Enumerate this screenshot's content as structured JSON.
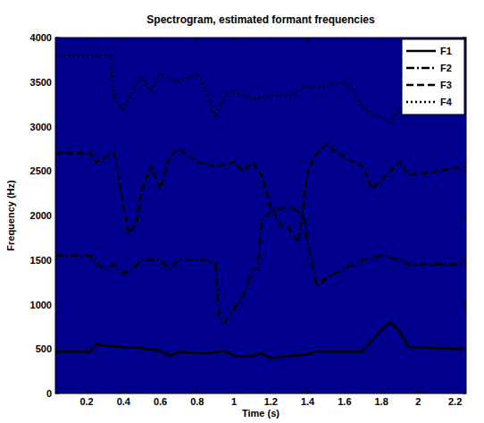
{
  "chart_data": {
    "type": "line",
    "title": "Spectrogram, estimated formant frequencies",
    "x_label": "Time (s)",
    "y_label": "Frequency (Hz)",
    "xlim": [
      0.03,
      2.26
    ],
    "ylim": [
      0,
      4000
    ],
    "xticks": [
      0.2,
      0.4,
      0.6,
      0.8,
      1,
      1.2,
      1.4,
      1.6,
      1.8,
      2,
      2.2
    ],
    "yticks": [
      0,
      500,
      1000,
      1500,
      2000,
      2500,
      3000,
      3500,
      4000
    ],
    "grid": false,
    "legend": "top-right",
    "series": [
      {
        "name": "F1",
        "color": "#000000",
        "line_style": "solid",
        "x": [
          0.03,
          0.22,
          0.25,
          0.4,
          0.5,
          0.6,
          0.65,
          0.7,
          0.85,
          0.95,
          1.0,
          1.1,
          1.15,
          1.2,
          1.3,
          1.4,
          1.45,
          1.5,
          1.7,
          1.75,
          1.82,
          1.85,
          1.9,
          1.95,
          2.26
        ],
        "values": [
          470,
          470,
          550,
          520,
          510,
          480,
          420,
          470,
          450,
          480,
          420,
          420,
          450,
          400,
          420,
          440,
          480,
          470,
          470,
          600,
          750,
          800,
          700,
          520,
          500
        ]
      },
      {
        "name": "F2",
        "color": "#000000",
        "line_style": "dashdot",
        "x": [
          0.03,
          0.22,
          0.25,
          0.3,
          0.35,
          0.4,
          0.45,
          0.5,
          0.6,
          0.65,
          0.7,
          0.85,
          0.9,
          0.92,
          0.95,
          1.0,
          1.05,
          1.08,
          1.1,
          1.13,
          1.15,
          1.2,
          1.3,
          1.38,
          1.4,
          1.45,
          1.5,
          1.6,
          1.7,
          1.8,
          1.9,
          1.95,
          2.26
        ],
        "values": [
          1550,
          1550,
          1450,
          1400,
          1450,
          1350,
          1400,
          1500,
          1500,
          1400,
          1500,
          1500,
          1450,
          850,
          800,
          950,
          1100,
          1250,
          1400,
          1400,
          1950,
          2050,
          2100,
          2000,
          1700,
          1200,
          1300,
          1400,
          1500,
          1550,
          1500,
          1450,
          1450
        ]
      },
      {
        "name": "F3",
        "color": "#000000",
        "line_style": "dashed",
        "x": [
          0.03,
          0.22,
          0.25,
          0.3,
          0.35,
          0.4,
          0.43,
          0.47,
          0.5,
          0.55,
          0.6,
          0.65,
          0.7,
          0.8,
          0.9,
          1.0,
          1.05,
          1.1,
          1.15,
          1.2,
          1.25,
          1.3,
          1.35,
          1.4,
          1.45,
          1.5,
          1.6,
          1.7,
          1.75,
          1.85,
          1.9,
          1.95,
          2.26
        ],
        "values": [
          2700,
          2700,
          2600,
          2650,
          2700,
          2100,
          1800,
          1900,
          2300,
          2550,
          2300,
          2650,
          2750,
          2600,
          2550,
          2600,
          2500,
          2600,
          2450,
          2100,
          1900,
          1850,
          1700,
          2500,
          2700,
          2800,
          2650,
          2550,
          2300,
          2500,
          2600,
          2450,
          2550
        ]
      },
      {
        "name": "F4",
        "color": "#000000",
        "line_style": "dotted",
        "x": [
          0.03,
          0.33,
          0.35,
          0.4,
          0.45,
          0.5,
          0.55,
          0.6,
          0.7,
          0.8,
          0.85,
          0.9,
          0.95,
          1.0,
          1.1,
          1.2,
          1.3,
          1.4,
          1.5,
          1.6,
          1.65,
          1.7,
          1.8,
          1.85,
          1.9,
          2.26
        ],
        "values": [
          3800,
          3800,
          3300,
          3200,
          3400,
          3550,
          3400,
          3600,
          3500,
          3600,
          3400,
          3100,
          3350,
          3400,
          3300,
          3350,
          3350,
          3450,
          3450,
          3500,
          3400,
          3200,
          3100,
          3050,
          3200,
          3200
        ]
      }
    ]
  }
}
